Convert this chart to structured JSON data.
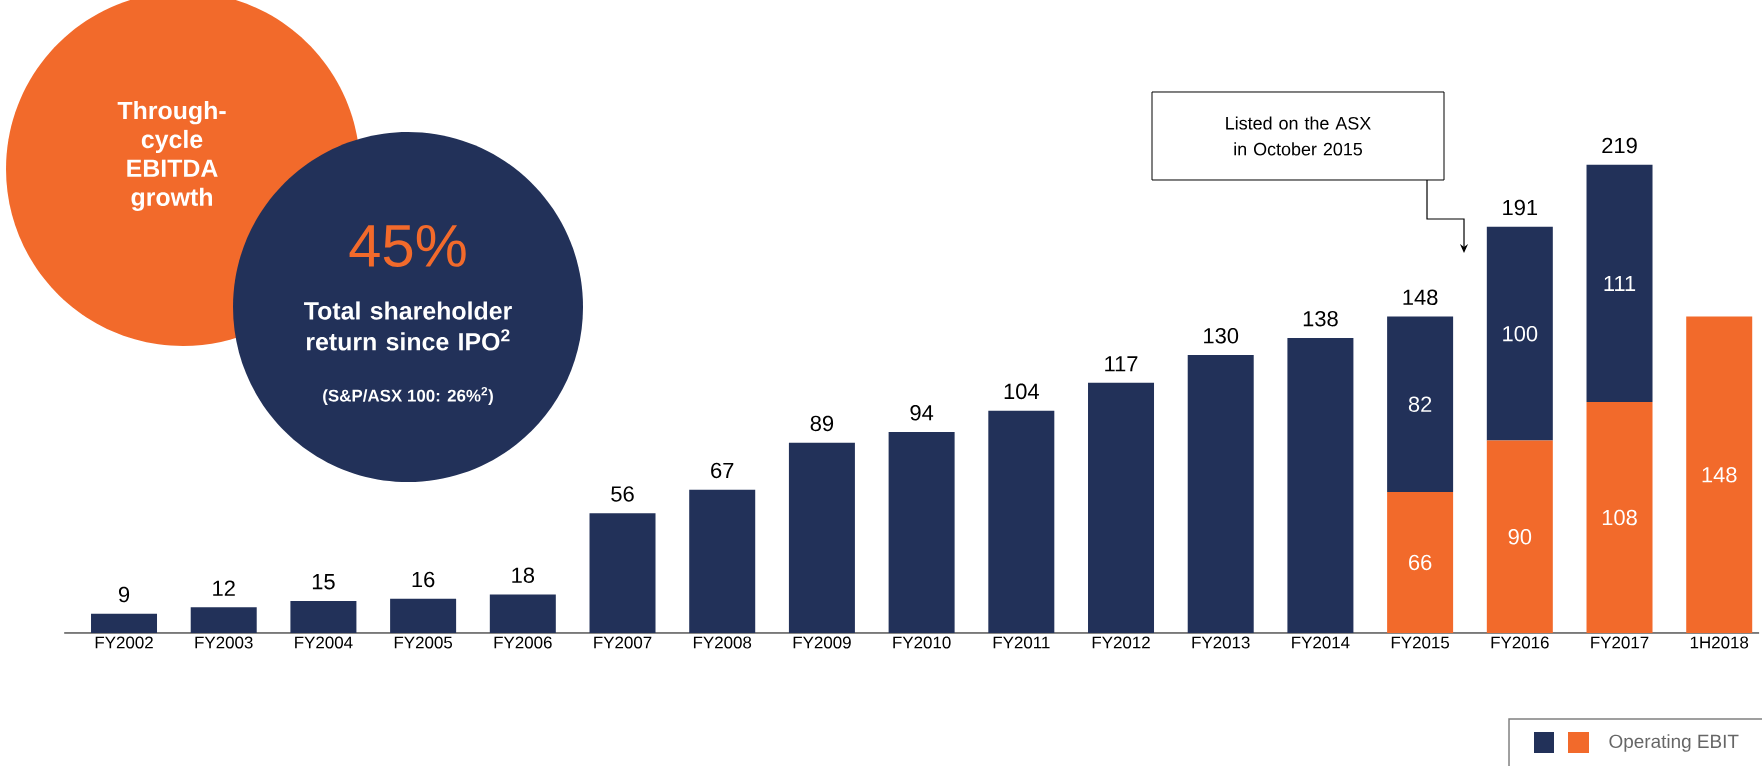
{
  "chart_data": {
    "type": "bar",
    "stacked": true,
    "categories": [
      "FY2002",
      "FY2003",
      "FY2004",
      "FY2005",
      "FY2006",
      "FY2007",
      "FY2008",
      "FY2009",
      "FY2010",
      "FY2011",
      "FY2012",
      "FY2013",
      "FY2014",
      "FY2015",
      "FY2016",
      "FY2017",
      "1H2018"
    ],
    "series": [
      {
        "name": "Operating EBIT",
        "color": "#f26a2b",
        "values": [
          null,
          null,
          null,
          null,
          null,
          null,
          null,
          null,
          null,
          null,
          null,
          null,
          null,
          66,
          90,
          108,
          148
        ],
        "value_labels": [
          null,
          null,
          null,
          null,
          null,
          null,
          null,
          null,
          null,
          null,
          null,
          null,
          null,
          "66",
          "90",
          "108",
          "148"
        ]
      },
      {
        "color": "#223159",
        "values": [
          9,
          12,
          15,
          16,
          18,
          56,
          67,
          89,
          94,
          104,
          117,
          130,
          138,
          82,
          100,
          111,
          null
        ],
        "value_labels": [
          null,
          null,
          null,
          null,
          null,
          null,
          null,
          null,
          null,
          null,
          null,
          null,
          null,
          "82",
          "100",
          "111",
          null
        ]
      }
    ],
    "totals": [
      "9",
      "12",
      "15",
      "16",
      "18",
      "56",
      "67",
      "89",
      "94",
      "104",
      "117",
      "130",
      "138",
      "148",
      "191",
      "219",
      null
    ],
    "legend": "bottom right",
    "annotations": [
      "Through-cycle EBITDA growth",
      "45%",
      "Total shareholder return since IPO$^{2}$",
      "(S&P/ASX 100: 26%$^{2}$)",
      "Listed on the ASX in October 2015"
    ]
  }
}
